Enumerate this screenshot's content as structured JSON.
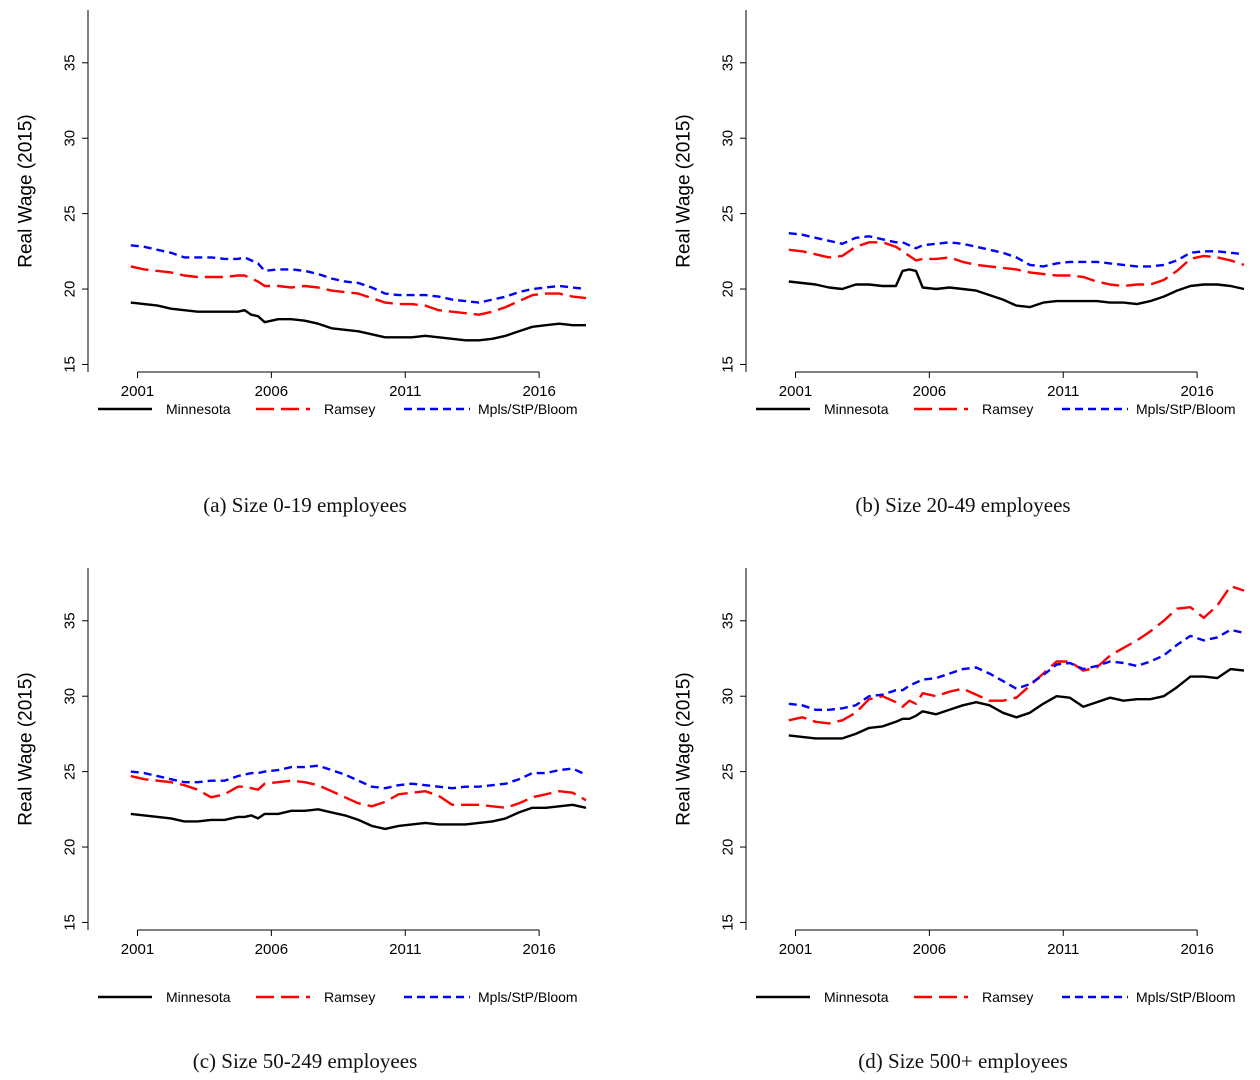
{
  "chart_data": [
    {
      "type": "line",
      "caption": "(a) Size 0-19 employees",
      "ylabel": "Real Wage (2015)",
      "xlabel": "",
      "ylim": [
        14.5,
        38.5
      ],
      "yticks": [
        15,
        20,
        25,
        30,
        35
      ],
      "xlim": [
        1999.6,
        2017.9
      ],
      "xticks": [
        2001,
        2006,
        2011,
        2016
      ],
      "legend_position": "bottom",
      "x": [
        2000.75,
        2001.25,
        2001.75,
        2002.25,
        2002.75,
        2003.25,
        2003.75,
        2004.25,
        2004.75,
        2005.0,
        2005.25,
        2005.5,
        2005.75,
        2006.25,
        2006.75,
        2007.25,
        2007.75,
        2008.25,
        2008.75,
        2009.25,
        2009.75,
        2010.25,
        2010.75,
        2011.25,
        2011.75,
        2012.25,
        2012.75,
        2013.25,
        2013.75,
        2014.25,
        2014.75,
        2015.25,
        2015.75,
        2016.25,
        2016.75,
        2017.25,
        2017.75
      ],
      "series": [
        {
          "name": "Minnesota",
          "color": "#000000",
          "dash": "solid",
          "values": [
            19.1,
            19.0,
            18.9,
            18.7,
            18.6,
            18.5,
            18.5,
            18.5,
            18.5,
            18.6,
            18.3,
            18.2,
            17.8,
            18.0,
            18.0,
            17.9,
            17.7,
            17.4,
            17.3,
            17.2,
            17.0,
            16.8,
            16.8,
            16.8,
            16.9,
            16.8,
            16.7,
            16.6,
            16.6,
            16.7,
            16.9,
            17.2,
            17.5,
            17.6,
            17.7,
            17.6,
            17.6
          ]
        },
        {
          "name": "Ramsey",
          "color": "#ff0000",
          "dash": "longdash",
          "values": [
            21.5,
            21.3,
            21.2,
            21.1,
            20.9,
            20.8,
            20.8,
            20.8,
            20.9,
            20.9,
            20.7,
            20.5,
            20.2,
            20.2,
            20.1,
            20.2,
            20.1,
            19.9,
            19.8,
            19.7,
            19.4,
            19.1,
            19.0,
            19.0,
            18.9,
            18.6,
            18.5,
            18.4,
            18.3,
            18.5,
            18.8,
            19.2,
            19.6,
            19.7,
            19.7,
            19.5,
            19.4
          ]
        },
        {
          "name": "Mpls/StP/Bloom",
          "color": "#0000ff",
          "dash": "shortdash",
          "values": [
            22.9,
            22.8,
            22.6,
            22.4,
            22.1,
            22.1,
            22.1,
            22.0,
            22.0,
            22.1,
            21.9,
            21.7,
            21.2,
            21.3,
            21.3,
            21.2,
            21.0,
            20.7,
            20.5,
            20.4,
            20.1,
            19.7,
            19.6,
            19.6,
            19.6,
            19.5,
            19.3,
            19.2,
            19.1,
            19.3,
            19.5,
            19.8,
            20.0,
            20.1,
            20.2,
            20.1,
            20.0
          ]
        }
      ]
    },
    {
      "type": "line",
      "caption": "(b) Size 20-49 employees",
      "ylabel": "Real Wage (2015)",
      "xlabel": "",
      "ylim": [
        14.5,
        38.5
      ],
      "yticks": [
        15,
        20,
        25,
        30,
        35
      ],
      "xlim": [
        1999.6,
        2017.9
      ],
      "xticks": [
        2001,
        2006,
        2011,
        2016
      ],
      "legend_position": "bottom",
      "x": [
        2000.75,
        2001.25,
        2001.75,
        2002.25,
        2002.75,
        2003.25,
        2003.75,
        2004.25,
        2004.75,
        2005.0,
        2005.25,
        2005.5,
        2005.75,
        2006.25,
        2006.75,
        2007.25,
        2007.75,
        2008.25,
        2008.75,
        2009.25,
        2009.75,
        2010.25,
        2010.75,
        2011.25,
        2011.75,
        2012.25,
        2012.75,
        2013.25,
        2013.75,
        2014.25,
        2014.75,
        2015.25,
        2015.75,
        2016.25,
        2016.75,
        2017.25,
        2017.75
      ],
      "series": [
        {
          "name": "Minnesota",
          "color": "#000000",
          "dash": "solid",
          "values": [
            20.5,
            20.4,
            20.3,
            20.1,
            20.0,
            20.3,
            20.3,
            20.2,
            20.2,
            21.2,
            21.3,
            21.2,
            20.1,
            20.0,
            20.1,
            20.0,
            19.9,
            19.6,
            19.3,
            18.9,
            18.8,
            19.1,
            19.2,
            19.2,
            19.2,
            19.2,
            19.1,
            19.1,
            19.0,
            19.2,
            19.5,
            19.9,
            20.2,
            20.3,
            20.3,
            20.2,
            20.0
          ]
        },
        {
          "name": "Ramsey",
          "color": "#ff0000",
          "dash": "longdash",
          "values": [
            22.6,
            22.5,
            22.3,
            22.1,
            22.2,
            22.8,
            23.1,
            23.1,
            22.8,
            22.5,
            22.2,
            21.9,
            22.0,
            22.0,
            22.1,
            21.8,
            21.6,
            21.5,
            21.4,
            21.3,
            21.1,
            21.0,
            20.9,
            20.9,
            20.8,
            20.5,
            20.3,
            20.2,
            20.3,
            20.3,
            20.6,
            21.2,
            22.0,
            22.2,
            22.1,
            21.9,
            21.6
          ]
        },
        {
          "name": "Mpls/StP/Bloom",
          "color": "#0000ff",
          "dash": "shortdash",
          "values": [
            23.7,
            23.6,
            23.4,
            23.2,
            23.0,
            23.4,
            23.5,
            23.3,
            23.1,
            23.1,
            22.9,
            22.7,
            22.9,
            23.0,
            23.1,
            23.0,
            22.8,
            22.6,
            22.4,
            22.1,
            21.6,
            21.5,
            21.7,
            21.8,
            21.8,
            21.8,
            21.7,
            21.6,
            21.5,
            21.5,
            21.6,
            21.9,
            22.4,
            22.5,
            22.5,
            22.4,
            22.3
          ]
        }
      ]
    },
    {
      "type": "line",
      "caption": "(c) Size 50-249 employees",
      "ylabel": "Real Wage (2015)",
      "xlabel": "",
      "ylim": [
        14.5,
        38.5
      ],
      "yticks": [
        15,
        20,
        25,
        30,
        35
      ],
      "xlim": [
        1999.6,
        2017.9
      ],
      "xticks": [
        2001,
        2006,
        2011,
        2016
      ],
      "legend_position": "bottom",
      "x": [
        2000.75,
        2001.25,
        2001.75,
        2002.25,
        2002.75,
        2003.25,
        2003.75,
        2004.25,
        2004.75,
        2005.0,
        2005.25,
        2005.5,
        2005.75,
        2006.25,
        2006.75,
        2007.25,
        2007.75,
        2008.25,
        2008.75,
        2009.25,
        2009.75,
        2010.25,
        2010.75,
        2011.25,
        2011.75,
        2012.25,
        2012.75,
        2013.25,
        2013.75,
        2014.25,
        2014.75,
        2015.25,
        2015.75,
        2016.25,
        2016.75,
        2017.25,
        2017.75
      ],
      "series": [
        {
          "name": "Minnesota",
          "color": "#000000",
          "dash": "solid",
          "values": [
            22.2,
            22.1,
            22.0,
            21.9,
            21.7,
            21.7,
            21.8,
            21.8,
            22.0,
            22.0,
            22.1,
            21.9,
            22.2,
            22.2,
            22.4,
            22.4,
            22.5,
            22.3,
            22.1,
            21.8,
            21.4,
            21.2,
            21.4,
            21.5,
            21.6,
            21.5,
            21.5,
            21.5,
            21.6,
            21.7,
            21.9,
            22.3,
            22.6,
            22.6,
            22.7,
            22.8,
            22.6
          ]
        },
        {
          "name": "Ramsey",
          "color": "#ff0000",
          "dash": "longdash",
          "values": [
            24.7,
            24.5,
            24.4,
            24.3,
            24.1,
            23.8,
            23.3,
            23.5,
            24.0,
            24.0,
            23.9,
            23.8,
            24.2,
            24.3,
            24.4,
            24.3,
            24.1,
            23.7,
            23.3,
            22.9,
            22.7,
            23.0,
            23.5,
            23.6,
            23.7,
            23.4,
            22.8,
            22.8,
            22.8,
            22.7,
            22.6,
            22.9,
            23.3,
            23.5,
            23.7,
            23.6,
            23.1
          ]
        },
        {
          "name": "Mpls/StP/Bloom",
          "color": "#0000ff",
          "dash": "shortdash",
          "values": [
            25.0,
            24.9,
            24.7,
            24.5,
            24.3,
            24.3,
            24.4,
            24.4,
            24.7,
            24.8,
            24.9,
            24.9,
            25.0,
            25.1,
            25.3,
            25.3,
            25.4,
            25.1,
            24.8,
            24.4,
            24.0,
            23.9,
            24.1,
            24.2,
            24.1,
            24.0,
            23.9,
            24.0,
            24.0,
            24.1,
            24.2,
            24.5,
            24.9,
            24.9,
            25.1,
            25.2,
            24.8
          ]
        }
      ]
    },
    {
      "type": "line",
      "caption": "(d) Size 500+ employees",
      "ylabel": "Real Wage (2015)",
      "xlabel": "",
      "ylim": [
        14.5,
        38.5
      ],
      "yticks": [
        15,
        20,
        25,
        30,
        35
      ],
      "xlim": [
        1999.6,
        2017.9
      ],
      "xticks": [
        2001,
        2006,
        2011,
        2016
      ],
      "legend_position": "bottom",
      "x": [
        2000.75,
        2001.25,
        2001.75,
        2002.25,
        2002.75,
        2003.25,
        2003.75,
        2004.25,
        2004.75,
        2005.0,
        2005.25,
        2005.5,
        2005.75,
        2006.25,
        2006.75,
        2007.25,
        2007.75,
        2008.25,
        2008.75,
        2009.25,
        2009.75,
        2010.25,
        2010.75,
        2011.25,
        2011.75,
        2012.25,
        2012.75,
        2013.25,
        2013.75,
        2014.25,
        2014.75,
        2015.25,
        2015.75,
        2016.25,
        2016.75,
        2017.25,
        2017.75
      ],
      "series": [
        {
          "name": "Minnesota",
          "color": "#000000",
          "dash": "solid",
          "values": [
            27.4,
            27.3,
            27.2,
            27.2,
            27.2,
            27.5,
            27.9,
            28.0,
            28.3,
            28.5,
            28.5,
            28.7,
            29.0,
            28.8,
            29.1,
            29.4,
            29.6,
            29.4,
            28.9,
            28.6,
            28.9,
            29.5,
            30.0,
            29.9,
            29.3,
            29.6,
            29.9,
            29.7,
            29.8,
            29.8,
            30.0,
            30.6,
            31.3,
            31.3,
            31.2,
            31.8,
            31.7
          ]
        },
        {
          "name": "Ramsey",
          "color": "#ff0000",
          "dash": "longdash",
          "values": [
            28.4,
            28.6,
            28.3,
            28.2,
            28.4,
            28.9,
            29.8,
            30.0,
            29.6,
            29.3,
            29.7,
            29.5,
            30.2,
            30.0,
            30.3,
            30.5,
            30.1,
            29.7,
            29.7,
            29.9,
            30.7,
            31.5,
            32.3,
            32.3,
            31.7,
            31.9,
            32.7,
            33.2,
            33.7,
            34.3,
            35.0,
            35.8,
            35.9,
            35.2,
            36.0,
            37.3,
            37.0
          ]
        },
        {
          "name": "Mpls/StP/Bloom",
          "color": "#0000ff",
          "dash": "shortdash",
          "values": [
            29.5,
            29.4,
            29.1,
            29.1,
            29.2,
            29.4,
            30.0,
            30.1,
            30.4,
            30.4,
            30.7,
            30.9,
            31.1,
            31.2,
            31.5,
            31.8,
            31.9,
            31.5,
            31.0,
            30.5,
            30.8,
            31.4,
            32.1,
            32.2,
            31.8,
            32.0,
            32.3,
            32.2,
            32.0,
            32.3,
            32.7,
            33.4,
            34.0,
            33.7,
            33.9,
            34.4,
            34.2
          ]
        }
      ]
    }
  ]
}
